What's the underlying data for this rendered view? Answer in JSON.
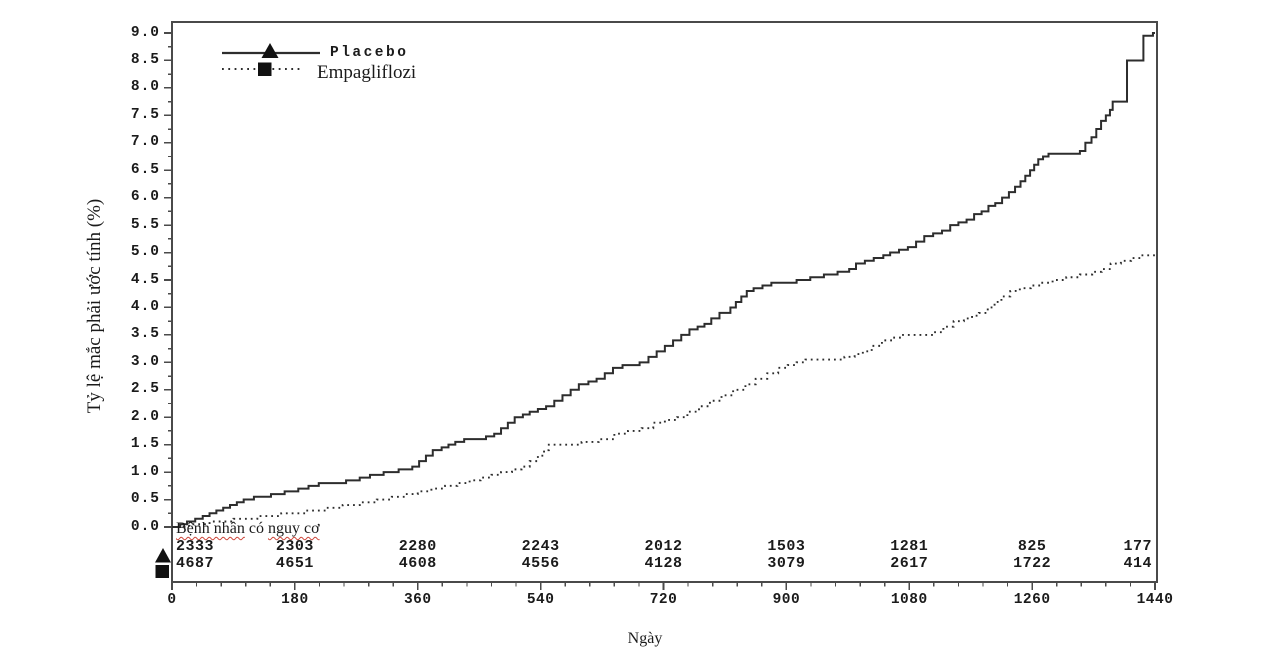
{
  "colors": {
    "curve": "#2d2d2d",
    "frame": "#4a4a4a",
    "text": "#1b1b1b",
    "spellcheck_underline": "#cc4438"
  },
  "legend": {
    "items": [
      {
        "label": "Placebo",
        "marker": "triangle",
        "line": "solid"
      },
      {
        "label": "Empagliflozi",
        "marker": "square",
        "line": "dotted"
      }
    ]
  },
  "y_axis": {
    "label": "Tỷ lệ mắc phải ước tính (%)",
    "ticks": [
      "0.0",
      "0.5",
      "1.0",
      "1.5",
      "2.0",
      "2.5",
      "3.0",
      "3.5",
      "4.0",
      "4.5",
      "5.0",
      "5.5",
      "6.0",
      "6.5",
      "7.0",
      "7.5",
      "8.0",
      "8.5",
      "9.0"
    ],
    "min": 0,
    "max": 9
  },
  "x_axis": {
    "label": "Ngày",
    "tick_days": [
      0,
      180,
      360,
      540,
      720,
      900,
      1080,
      1260,
      1440
    ],
    "tick_labels": [
      "0",
      "180",
      "360",
      "540",
      "720",
      "900",
      "1080",
      "1260",
      "1440"
    ],
    "minor_step_days": 36,
    "min": 0,
    "max": 1440
  },
  "risk_table": {
    "title_parts": [
      {
        "text": "Bệnh nhân",
        "underline": true
      },
      {
        "text": " có ",
        "underline": false
      },
      {
        "text": "nguy cơ",
        "underline": true
      }
    ],
    "rows": [
      {
        "marker": "triangle",
        "counts": [
          "2333",
          "2303",
          "2280",
          "2243",
          "2012",
          "1503",
          "1281",
          "825",
          "177"
        ]
      },
      {
        "marker": "square",
        "counts": [
          "4687",
          "4651",
          "4608",
          "4556",
          "4128",
          "3079",
          "2617",
          "1722",
          "414"
        ]
      }
    ]
  },
  "chart_data": {
    "type": "line",
    "subtype": "kaplan-meier-step",
    "xlabel": "Ngày",
    "ylabel": "Tỷ lệ mắc phải ước tính (%)",
    "xlim": [
      0,
      1440
    ],
    "ylim": [
      0,
      9
    ],
    "grid": false,
    "legend_position": "top-left-inside",
    "series": [
      {
        "name": "Placebo",
        "line": "solid",
        "marker": "triangle",
        "points": [
          [
            0,
            0
          ],
          [
            12,
            0.05
          ],
          [
            22,
            0.1
          ],
          [
            34,
            0.15
          ],
          [
            45,
            0.2
          ],
          [
            55,
            0.25
          ],
          [
            65,
            0.3
          ],
          [
            75,
            0.35
          ],
          [
            85,
            0.4
          ],
          [
            95,
            0.45
          ],
          [
            105,
            0.5
          ],
          [
            120,
            0.55
          ],
          [
            145,
            0.6
          ],
          [
            165,
            0.65
          ],
          [
            185,
            0.7
          ],
          [
            200,
            0.75
          ],
          [
            215,
            0.8
          ],
          [
            255,
            0.85
          ],
          [
            275,
            0.9
          ],
          [
            290,
            0.95
          ],
          [
            310,
            1.0
          ],
          [
            332,
            1.05
          ],
          [
            352,
            1.1
          ],
          [
            362,
            1.2
          ],
          [
            372,
            1.3
          ],
          [
            382,
            1.4
          ],
          [
            395,
            1.45
          ],
          [
            405,
            1.5
          ],
          [
            415,
            1.55
          ],
          [
            428,
            1.6
          ],
          [
            460,
            1.65
          ],
          [
            472,
            1.7
          ],
          [
            482,
            1.8
          ],
          [
            492,
            1.9
          ],
          [
            502,
            2.0
          ],
          [
            514,
            2.05
          ],
          [
            524,
            2.1
          ],
          [
            536,
            2.15
          ],
          [
            548,
            2.2
          ],
          [
            560,
            2.3
          ],
          [
            572,
            2.4
          ],
          [
            584,
            2.5
          ],
          [
            596,
            2.6
          ],
          [
            610,
            2.65
          ],
          [
            622,
            2.7
          ],
          [
            634,
            2.8
          ],
          [
            646,
            2.9
          ],
          [
            660,
            2.95
          ],
          [
            685,
            3.0
          ],
          [
            698,
            3.1
          ],
          [
            710,
            3.2
          ],
          [
            722,
            3.3
          ],
          [
            734,
            3.4
          ],
          [
            746,
            3.5
          ],
          [
            758,
            3.6
          ],
          [
            770,
            3.65
          ],
          [
            780,
            3.7
          ],
          [
            790,
            3.8
          ],
          [
            802,
            3.9
          ],
          [
            818,
            4.0
          ],
          [
            826,
            4.1
          ],
          [
            834,
            4.2
          ],
          [
            842,
            4.3
          ],
          [
            852,
            4.35
          ],
          [
            865,
            4.4
          ],
          [
            878,
            4.45
          ],
          [
            915,
            4.5
          ],
          [
            935,
            4.55
          ],
          [
            955,
            4.6
          ],
          [
            975,
            4.65
          ],
          [
            992,
            4.7
          ],
          [
            1002,
            4.8
          ],
          [
            1015,
            4.85
          ],
          [
            1028,
            4.9
          ],
          [
            1042,
            4.95
          ],
          [
            1052,
            5.0
          ],
          [
            1065,
            5.05
          ],
          [
            1078,
            5.1
          ],
          [
            1090,
            5.2
          ],
          [
            1102,
            5.3
          ],
          [
            1115,
            5.35
          ],
          [
            1128,
            5.4
          ],
          [
            1140,
            5.5
          ],
          [
            1152,
            5.55
          ],
          [
            1164,
            5.6
          ],
          [
            1175,
            5.7
          ],
          [
            1186,
            5.75
          ],
          [
            1196,
            5.85
          ],
          [
            1206,
            5.9
          ],
          [
            1216,
            6.0
          ],
          [
            1226,
            6.1
          ],
          [
            1235,
            6.2
          ],
          [
            1243,
            6.3
          ],
          [
            1250,
            6.4
          ],
          [
            1257,
            6.5
          ],
          [
            1263,
            6.6
          ],
          [
            1269,
            6.7
          ],
          [
            1276,
            6.75
          ],
          [
            1284,
            6.8
          ],
          [
            1330,
            6.85
          ],
          [
            1338,
            7.0
          ],
          [
            1347,
            7.1
          ],
          [
            1354,
            7.25
          ],
          [
            1361,
            7.4
          ],
          [
            1368,
            7.5
          ],
          [
            1374,
            7.6
          ],
          [
            1378,
            7.75
          ],
          [
            1399,
            8.5
          ],
          [
            1423,
            8.95
          ],
          [
            1437,
            9.0
          ],
          [
            1440,
            9.0
          ]
        ]
      },
      {
        "name": "Empagliflozi",
        "line": "dotted",
        "marker": "square",
        "points": [
          [
            0,
            0
          ],
          [
            25,
            0.05
          ],
          [
            55,
            0.1
          ],
          [
            90,
            0.15
          ],
          [
            125,
            0.2
          ],
          [
            160,
            0.25
          ],
          [
            195,
            0.3
          ],
          [
            225,
            0.35
          ],
          [
            250,
            0.4
          ],
          [
            275,
            0.45
          ],
          [
            300,
            0.5
          ],
          [
            322,
            0.55
          ],
          [
            342,
            0.6
          ],
          [
            360,
            0.65
          ],
          [
            380,
            0.7
          ],
          [
            400,
            0.75
          ],
          [
            418,
            0.8
          ],
          [
            436,
            0.85
          ],
          [
            452,
            0.9
          ],
          [
            468,
            0.95
          ],
          [
            482,
            1.0
          ],
          [
            498,
            1.05
          ],
          [
            512,
            1.1
          ],
          [
            524,
            1.2
          ],
          [
            536,
            1.3
          ],
          [
            545,
            1.4
          ],
          [
            552,
            1.5
          ],
          [
            600,
            1.55
          ],
          [
            625,
            1.6
          ],
          [
            648,
            1.7
          ],
          [
            668,
            1.75
          ],
          [
            688,
            1.8
          ],
          [
            705,
            1.9
          ],
          [
            722,
            1.95
          ],
          [
            740,
            2.0
          ],
          [
            755,
            2.1
          ],
          [
            772,
            2.2
          ],
          [
            788,
            2.3
          ],
          [
            805,
            2.4
          ],
          [
            822,
            2.5
          ],
          [
            840,
            2.6
          ],
          [
            855,
            2.7
          ],
          [
            872,
            2.8
          ],
          [
            888,
            2.9
          ],
          [
            902,
            2.95
          ],
          [
            915,
            3.0
          ],
          [
            928,
            3.05
          ],
          [
            985,
            3.1
          ],
          [
            1000,
            3.15
          ],
          [
            1012,
            3.2
          ],
          [
            1025,
            3.3
          ],
          [
            1040,
            3.4
          ],
          [
            1055,
            3.45
          ],
          [
            1068,
            3.5
          ],
          [
            1115,
            3.55
          ],
          [
            1130,
            3.65
          ],
          [
            1145,
            3.75
          ],
          [
            1160,
            3.8
          ],
          [
            1172,
            3.85
          ],
          [
            1182,
            3.9
          ],
          [
            1195,
            4.0
          ],
          [
            1205,
            4.1
          ],
          [
            1215,
            4.2
          ],
          [
            1228,
            4.3
          ],
          [
            1242,
            4.35
          ],
          [
            1258,
            4.4
          ],
          [
            1272,
            4.45
          ],
          [
            1290,
            4.5
          ],
          [
            1310,
            4.55
          ],
          [
            1330,
            4.6
          ],
          [
            1348,
            4.65
          ],
          [
            1362,
            4.7
          ],
          [
            1375,
            4.8
          ],
          [
            1390,
            4.85
          ],
          [
            1405,
            4.9
          ],
          [
            1420,
            4.95
          ],
          [
            1440,
            4.95
          ]
        ]
      }
    ]
  }
}
